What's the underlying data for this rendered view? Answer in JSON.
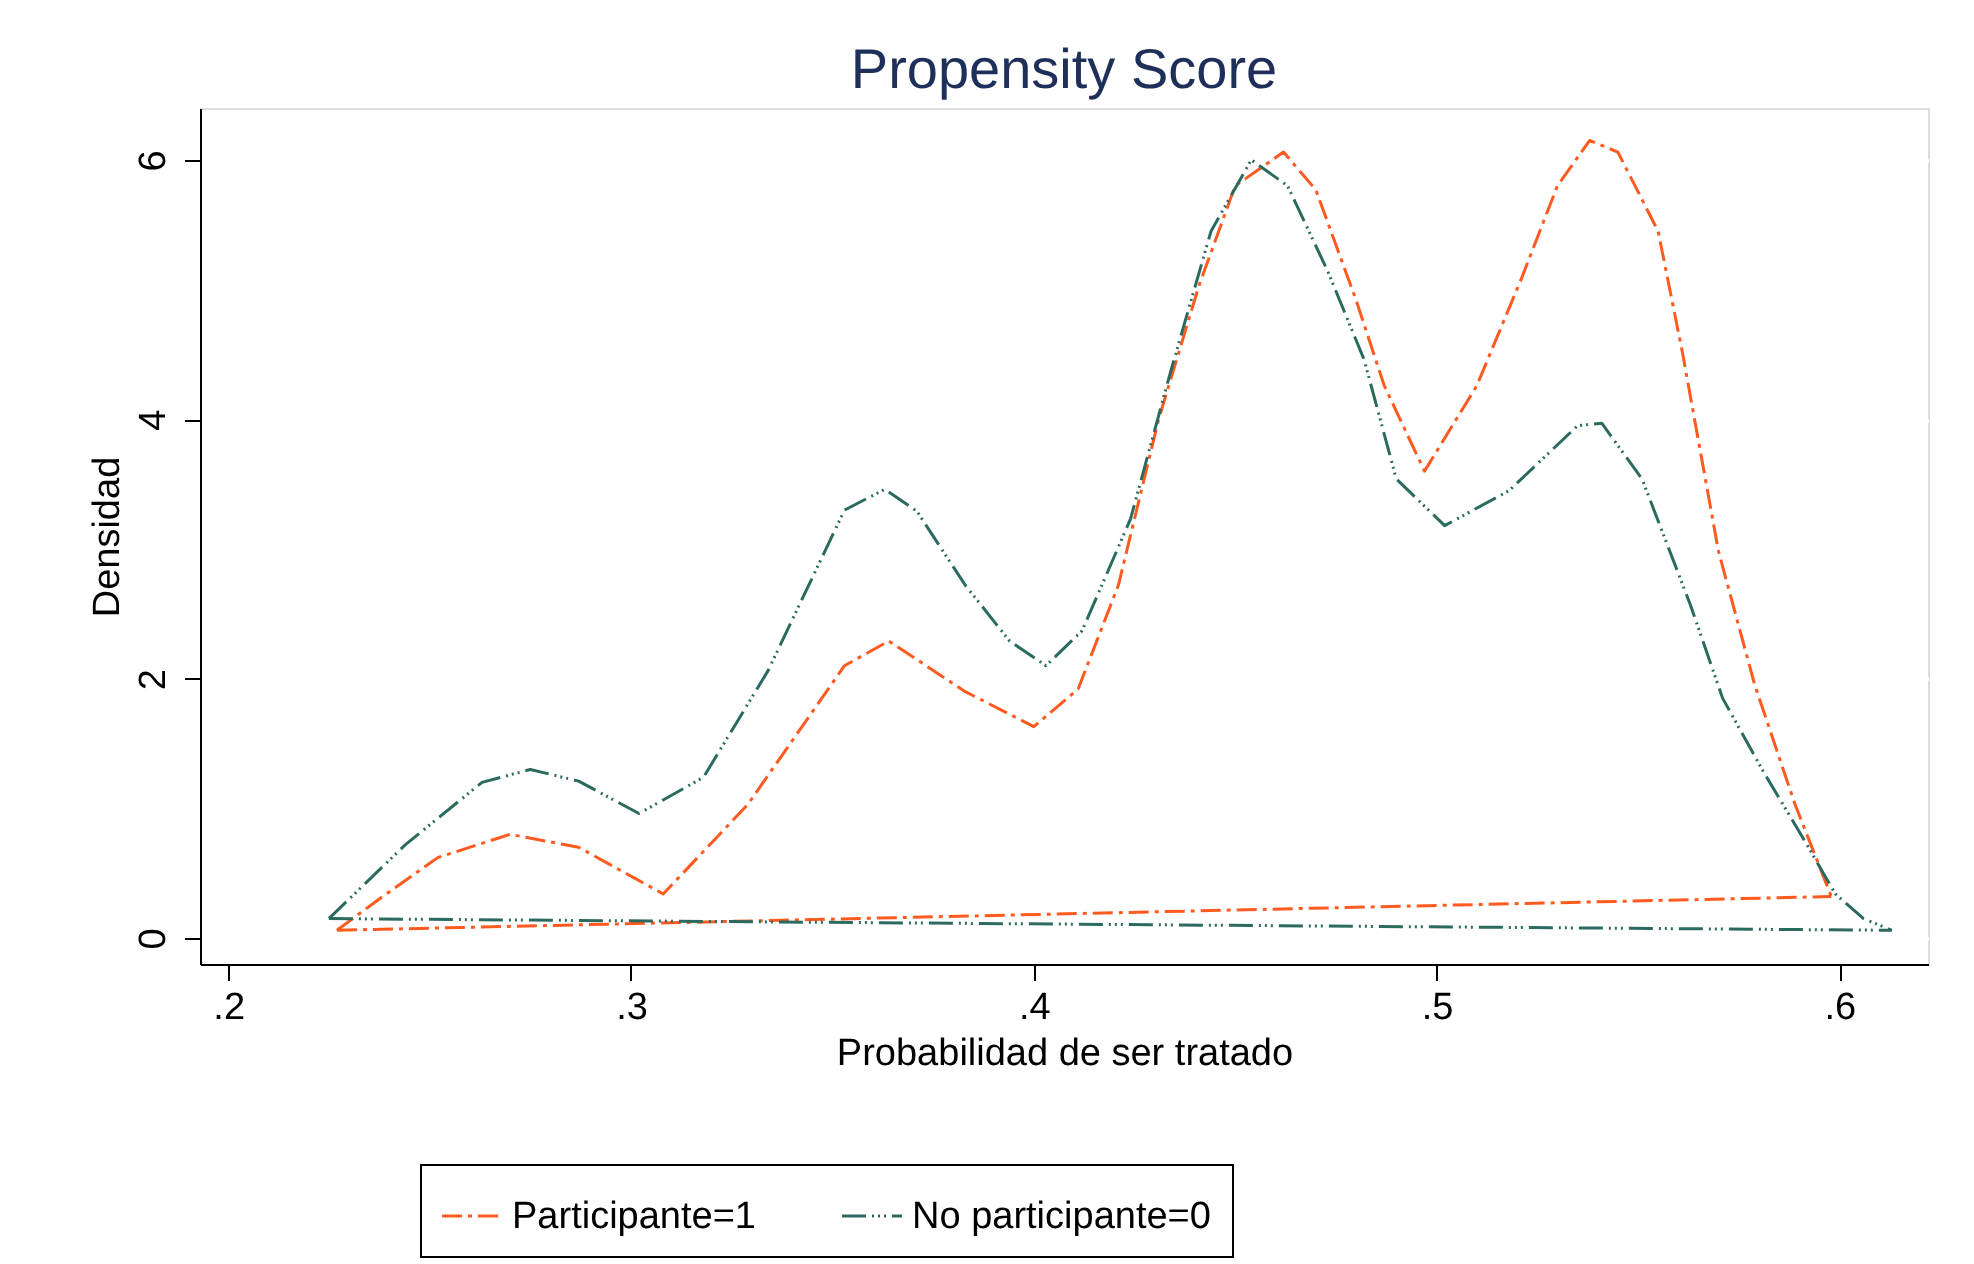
{
  "chart_data": {
    "type": "line",
    "title": "Propensity Score",
    "xlabel": "Probabilidad de ser tratado",
    "ylabel": "Densidad",
    "xlim": [
      0.193,
      0.622
    ],
    "ylim": [
      -0.2,
      6.4
    ],
    "xticks": [
      {
        "value": 0.2,
        "label": ".2"
      },
      {
        "value": 0.3,
        "label": ".3"
      },
      {
        "value": 0.4,
        "label": ".4"
      },
      {
        "value": 0.5,
        "label": ".5"
      },
      {
        "value": 0.6,
        "label": ".6"
      }
    ],
    "yticks": [
      0,
      2,
      4,
      6
    ],
    "grid": "y",
    "legend": "bottom",
    "marker": "none",
    "series": [
      {
        "name": "Participante=1",
        "color": "#ff5a1f",
        "line_style": "dashed",
        "x": [
          0.227,
          0.237,
          0.252,
          0.27,
          0.287,
          0.308,
          0.329,
          0.353,
          0.364,
          0.383,
          0.4,
          0.411,
          0.421,
          0.431,
          0.441,
          0.45,
          0.462,
          0.47,
          0.48,
          0.487,
          0.497,
          0.51,
          0.521,
          0.53,
          0.538,
          0.545,
          0.555,
          0.561,
          0.57,
          0.579,
          0.589,
          0.598
        ],
        "values": [
          0.06,
          0.29,
          0.62,
          0.8,
          0.7,
          0.34,
          1.03,
          2.1,
          2.29,
          1.9,
          1.63,
          1.92,
          2.72,
          4.0,
          5.03,
          5.8,
          6.06,
          5.77,
          4.92,
          4.26,
          3.6,
          4.26,
          5.08,
          5.8,
          6.15,
          6.06,
          5.45,
          4.52,
          2.98,
          1.95,
          1.03,
          0.32
        ]
      },
      {
        "name": "No participante=0",
        "color": "#2b6b5f",
        "line_style": "dotted",
        "x": [
          0.225,
          0.23,
          0.244,
          0.263,
          0.275,
          0.287,
          0.302,
          0.318,
          0.334,
          0.353,
          0.363,
          0.371,
          0.383,
          0.394,
          0.403,
          0.412,
          0.424,
          0.434,
          0.444,
          0.454,
          0.463,
          0.473,
          0.482,
          0.49,
          0.502,
          0.518,
          0.535,
          0.541,
          0.551,
          0.563,
          0.571,
          0.581,
          0.591,
          0.599,
          0.606,
          0.613
        ],
        "values": [
          0.15,
          0.3,
          0.72,
          1.2,
          1.3,
          1.21,
          0.96,
          1.24,
          2.06,
          3.3,
          3.46,
          3.29,
          2.72,
          2.29,
          2.1,
          2.37,
          3.23,
          4.37,
          5.45,
          6.0,
          5.8,
          5.14,
          4.46,
          3.54,
          3.18,
          3.45,
          3.95,
          3.97,
          3.54,
          2.57,
          1.85,
          1.29,
          0.77,
          0.34,
          0.15,
          0.06
        ]
      },
      {
        "color": "#ff5a1f",
        "line_style": "dashed",
        "x": [
          0.227,
          0.598
        ],
        "values": [
          0.06,
          0.32
        ]
      },
      {
        "color": "#2b6b5f",
        "line_style": "dotted",
        "x": [
          0.225,
          0.613
        ],
        "values": [
          0.15,
          0.06
        ]
      }
    ]
  }
}
